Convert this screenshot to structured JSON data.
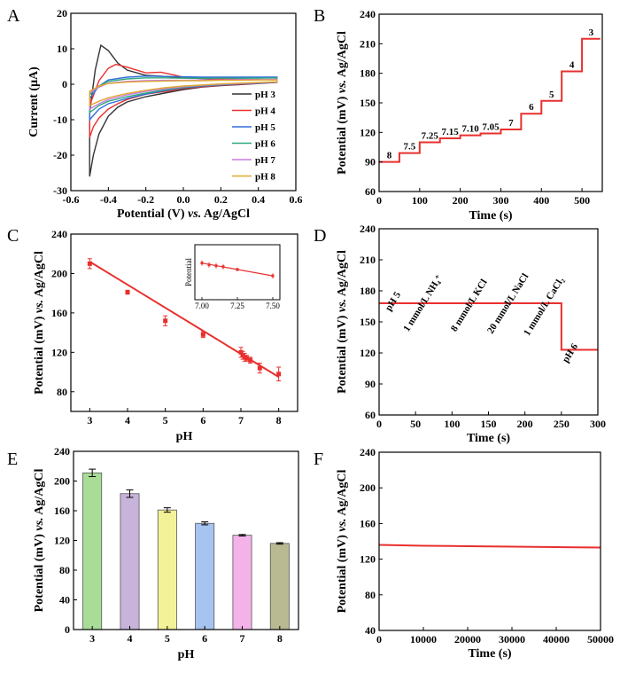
{
  "chart_data": [
    {
      "panel": "A",
      "type": "line",
      "title": "",
      "xlabel": "Potential (V) vs. Ag/AgCl",
      "xlabel_parts": [
        "Potential (V) ",
        "vs.",
        " Ag/AgCl"
      ],
      "ylabel": "Current (μA)",
      "xlim": [
        -0.6,
        0.6
      ],
      "ylim": [
        -30,
        20
      ],
      "xticks": [
        "-0.6",
        "-0.4",
        "-0.2",
        "0.0",
        "0.2",
        "0.4",
        "0.6"
      ],
      "yticks": [
        "-30",
        "-20",
        "-10",
        "0",
        "10",
        "20"
      ],
      "legend_position": "right",
      "series": [
        {
          "name": "pH 3",
          "color": "#333333",
          "upper": [
            [
              -0.5,
              -8
            ],
            [
              -0.47,
              4
            ],
            [
              -0.44,
              11
            ],
            [
              -0.4,
              9.5
            ],
            [
              -0.35,
              6
            ],
            [
              -0.3,
              4
            ],
            [
              -0.2,
              2.5
            ],
            [
              -0.1,
              2.2
            ],
            [
              0.0,
              1.8
            ],
            [
              0.1,
              1.6
            ],
            [
              0.2,
              1.5
            ],
            [
              0.3,
              1.4
            ],
            [
              0.4,
              1.3
            ],
            [
              0.5,
              1.3
            ]
          ],
          "lower": [
            [
              -0.5,
              -26
            ],
            [
              -0.48,
              -20
            ],
            [
              -0.45,
              -14
            ],
            [
              -0.4,
              -9
            ],
            [
              -0.35,
              -6.5
            ],
            [
              -0.3,
              -5
            ],
            [
              -0.2,
              -3.5
            ],
            [
              -0.1,
              -2.5
            ],
            [
              0.0,
              -1.5
            ],
            [
              0.1,
              -0.8
            ],
            [
              0.2,
              -0.4
            ],
            [
              0.3,
              -0.1
            ],
            [
              0.4,
              0.2
            ],
            [
              0.5,
              0.5
            ]
          ]
        },
        {
          "name": "pH 4",
          "color": "#e8302e",
          "upper": [
            [
              -0.5,
              -6
            ],
            [
              -0.45,
              1
            ],
            [
              -0.4,
              4.5
            ],
            [
              -0.36,
              5.6
            ],
            [
              -0.3,
              4.8
            ],
            [
              -0.2,
              3.2
            ],
            [
              -0.12,
              3.4
            ],
            [
              -0.05,
              2.6
            ],
            [
              0.0,
              2
            ],
            [
              0.1,
              1.7
            ],
            [
              0.2,
              1.5
            ],
            [
              0.3,
              1.4
            ],
            [
              0.4,
              1.3
            ],
            [
              0.5,
              1.3
            ]
          ],
          "lower": [
            [
              -0.5,
              -15
            ],
            [
              -0.48,
              -12
            ],
            [
              -0.45,
              -9.5
            ],
            [
              -0.4,
              -7
            ],
            [
              -0.35,
              -5.5
            ],
            [
              -0.3,
              -4.3
            ],
            [
              -0.2,
              -2.8
            ],
            [
              -0.12,
              -2.2
            ],
            [
              -0.05,
              -1.7
            ],
            [
              0.0,
              -1.2
            ],
            [
              0.1,
              -0.7
            ],
            [
              0.2,
              -0.3
            ],
            [
              0.3,
              0
            ],
            [
              0.4,
              0.3
            ],
            [
              0.5,
              0.6
            ]
          ]
        },
        {
          "name": "pH 5",
          "color": "#2f6fdc",
          "upper": [
            [
              -0.5,
              -4
            ],
            [
              -0.45,
              -0.5
            ],
            [
              -0.4,
              1.2
            ],
            [
              -0.3,
              2
            ],
            [
              -0.2,
              2.3
            ],
            [
              -0.1,
              2.2
            ],
            [
              0.0,
              2.1
            ],
            [
              0.1,
              2
            ],
            [
              0.2,
              2
            ],
            [
              0.3,
              2
            ],
            [
              0.4,
              2
            ],
            [
              0.5,
              2
            ]
          ],
          "lower": [
            [
              -0.5,
              -10
            ],
            [
              -0.45,
              -7
            ],
            [
              -0.4,
              -5.5
            ],
            [
              -0.3,
              -4
            ],
            [
              -0.2,
              -2.8
            ],
            [
              -0.1,
              -1.8
            ],
            [
              0.0,
              -1
            ],
            [
              0.1,
              -0.5
            ],
            [
              0.2,
              -0.2
            ],
            [
              0.3,
              0.1
            ],
            [
              0.4,
              0.3
            ],
            [
              0.5,
              0.6
            ]
          ]
        },
        {
          "name": "pH 6",
          "color": "#2ea87c",
          "upper": [
            [
              -0.5,
              -3
            ],
            [
              -0.45,
              -0.5
            ],
            [
              -0.4,
              0.8
            ],
            [
              -0.3,
              1.5
            ],
            [
              -0.2,
              1.8
            ],
            [
              -0.1,
              1.8
            ],
            [
              0.0,
              1.7
            ],
            [
              0.1,
              1.7
            ],
            [
              0.2,
              1.7
            ],
            [
              0.3,
              1.7
            ],
            [
              0.4,
              1.7
            ],
            [
              0.5,
              1.8
            ]
          ],
          "lower": [
            [
              -0.5,
              -8
            ],
            [
              -0.45,
              -6
            ],
            [
              -0.4,
              -4.8
            ],
            [
              -0.3,
              -3.5
            ],
            [
              -0.2,
              -2.5
            ],
            [
              -0.1,
              -1.6
            ],
            [
              0.0,
              -0.9
            ],
            [
              0.1,
              -0.4
            ],
            [
              0.2,
              -0.1
            ],
            [
              0.3,
              0.2
            ],
            [
              0.4,
              0.4
            ],
            [
              0.5,
              0.6
            ]
          ]
        },
        {
          "name": "pH 7",
          "color": "#c77be0",
          "upper": [
            [
              -0.5,
              -2.5
            ],
            [
              -0.45,
              -0.8
            ],
            [
              -0.4,
              0.3
            ],
            [
              -0.3,
              0.8
            ],
            [
              -0.2,
              1
            ],
            [
              -0.1,
              1.1
            ],
            [
              0.0,
              1.1
            ],
            [
              0.1,
              1.2
            ],
            [
              0.2,
              1.2
            ],
            [
              0.3,
              1.3
            ],
            [
              0.4,
              1.3
            ],
            [
              0.5,
              1.4
            ]
          ],
          "lower": [
            [
              -0.5,
              -7
            ],
            [
              -0.45,
              -5.5
            ],
            [
              -0.4,
              -4.3
            ],
            [
              -0.3,
              -3
            ],
            [
              -0.2,
              -2
            ],
            [
              -0.1,
              -1.3
            ],
            [
              0.0,
              -0.7
            ],
            [
              0.1,
              -0.3
            ],
            [
              0.2,
              0
            ],
            [
              0.3,
              0.2
            ],
            [
              0.4,
              0.4
            ],
            [
              0.5,
              0.6
            ]
          ]
        },
        {
          "name": "pH 8",
          "color": "#e0a832",
          "upper": [
            [
              -0.5,
              -2
            ],
            [
              -0.45,
              -0.5
            ],
            [
              -0.4,
              0.2
            ],
            [
              -0.3,
              0.6
            ],
            [
              -0.2,
              0.8
            ],
            [
              -0.1,
              0.9
            ],
            [
              0.0,
              1
            ],
            [
              0.1,
              1
            ],
            [
              0.2,
              1.1
            ],
            [
              0.3,
              1.1
            ],
            [
              0.4,
              1.2
            ],
            [
              0.5,
              1.2
            ]
          ],
          "lower": [
            [
              -0.5,
              -6
            ],
            [
              -0.45,
              -4.8
            ],
            [
              -0.4,
              -3.8
            ],
            [
              -0.3,
              -2.6
            ],
            [
              -0.2,
              -1.7
            ],
            [
              -0.1,
              -1
            ],
            [
              0.0,
              -0.5
            ],
            [
              0.1,
              -0.2
            ],
            [
              0.2,
              0.1
            ],
            [
              0.3,
              0.3
            ],
            [
              0.4,
              0.5
            ],
            [
              0.5,
              0.7
            ]
          ]
        }
      ]
    },
    {
      "panel": "B",
      "type": "line",
      "title": "",
      "xlabel": "Time (s)",
      "ylabel": "Potential (mV) vs. Ag/AgCl",
      "ylabel_parts": [
        "Potential (mV) ",
        "vs.",
        " Ag/AgCl"
      ],
      "xlim": [
        0,
        550
      ],
      "ylim": [
        60,
        240
      ],
      "xticks": [
        "0",
        "100",
        "200",
        "300",
        "400",
        "500"
      ],
      "yticks": [
        "60",
        "90",
        "120",
        "150",
        "180",
        "210",
        "240"
      ],
      "color": "#e8302e",
      "steps": [
        {
          "t0": 0,
          "t1": 50,
          "v": 90,
          "label": "8"
        },
        {
          "t0": 50,
          "t1": 100,
          "v": 99,
          "label": "7.5"
        },
        {
          "t0": 100,
          "t1": 150,
          "v": 110,
          "label": "7.25"
        },
        {
          "t0": 150,
          "t1": 200,
          "v": 114,
          "label": "7.15"
        },
        {
          "t0": 200,
          "t1": 250,
          "v": 117,
          "label": "7.10"
        },
        {
          "t0": 250,
          "t1": 300,
          "v": 119,
          "label": "7.05"
        },
        {
          "t0": 300,
          "t1": 350,
          "v": 123,
          "label": "7"
        },
        {
          "t0": 350,
          "t1": 400,
          "v": 139,
          "label": "6"
        },
        {
          "t0": 400,
          "t1": 450,
          "v": 152,
          "label": "5"
        },
        {
          "t0": 450,
          "t1": 500,
          "v": 182,
          "label": "4"
        },
        {
          "t0": 500,
          "t1": 545,
          "v": 215,
          "label": "3"
        }
      ]
    },
    {
      "panel": "C",
      "type": "scatter",
      "title": "",
      "xlabel": "pH",
      "ylabel": "Potential (mV) vs. Ag/AgCl",
      "ylabel_parts": [
        "Potential (mV) ",
        "vs.",
        " Ag/AgCl"
      ],
      "xlim": [
        2.5,
        8.5
      ],
      "ylim": [
        60,
        240
      ],
      "xticks": [
        "3",
        "4",
        "5",
        "6",
        "7",
        "8"
      ],
      "yticks": [
        "80",
        "120",
        "160",
        "200",
        "240"
      ],
      "color": "#e8302e",
      "points": [
        {
          "x": 3,
          "y": 210,
          "err": 5
        },
        {
          "x": 4,
          "y": 181,
          "err": 2
        },
        {
          "x": 5,
          "y": 152,
          "err": 5
        },
        {
          "x": 6,
          "y": 138,
          "err": 3
        },
        {
          "x": 7,
          "y": 120,
          "err": 5
        },
        {
          "x": 7.05,
          "y": 117,
          "err": 4
        },
        {
          "x": 7.1,
          "y": 115,
          "err": 4
        },
        {
          "x": 7.15,
          "y": 114,
          "err": 3
        },
        {
          "x": 7.25,
          "y": 112,
          "err": 3
        },
        {
          "x": 7.5,
          "y": 104,
          "err": 5
        },
        {
          "x": 8,
          "y": 98,
          "err": 7
        }
      ],
      "fit": {
        "x0": 3,
        "y0": 212,
        "x1": 8,
        "y1": 95
      },
      "inset": {
        "ylabel": "Potential",
        "xlim": [
          6.95,
          7.55
        ],
        "ylim": [
          100,
          130
        ],
        "xticks": [
          "7.00",
          "7.25",
          "7.50"
        ],
        "points": [
          {
            "x": 7,
            "y": 120,
            "err": 1.5
          },
          {
            "x": 7.05,
            "y": 119,
            "err": 1.5
          },
          {
            "x": 7.1,
            "y": 118.5,
            "err": 1.5
          },
          {
            "x": 7.15,
            "y": 118,
            "err": 1.5
          },
          {
            "x": 7.25,
            "y": 116.5,
            "err": 1
          },
          {
            "x": 7.5,
            "y": 113,
            "err": 1.5
          }
        ]
      }
    },
    {
      "panel": "D",
      "type": "line",
      "title": "",
      "xlabel": "Time (s)",
      "ylabel": "Potential (mV) vs. Ag/AgCl",
      "ylabel_parts": [
        "Potential (mV) ",
        "vs.",
        " Ag/AgCl"
      ],
      "xlim": [
        0,
        300
      ],
      "ylim": [
        60,
        240
      ],
      "xticks": [
        "0",
        "50",
        "100",
        "150",
        "200",
        "250",
        "300"
      ],
      "yticks": [
        "60",
        "90",
        "120",
        "150",
        "180",
        "210",
        "240"
      ],
      "color": "#e8302e",
      "segments": [
        {
          "t0": 0,
          "t1": 250,
          "v": 168
        },
        {
          "t0": 250,
          "t1": 300,
          "v": 123
        }
      ],
      "annotations": [
        {
          "x": 15,
          "y": 160,
          "text": "pH 5"
        },
        {
          "x": 40,
          "y": 140,
          "text": "1 mmol/L NH₄⁺"
        },
        {
          "x": 105,
          "y": 140,
          "text": "8 mmol/L KCl"
        },
        {
          "x": 155,
          "y": 138,
          "text": "20 mmol/L NaCl"
        },
        {
          "x": 205,
          "y": 136,
          "text": "1 mmol/L CaCl₂"
        },
        {
          "x": 258,
          "y": 110,
          "text": "pH 6"
        }
      ]
    },
    {
      "panel": "E",
      "type": "bar",
      "title": "",
      "xlabel": "pH",
      "ylabel": "Potential (mV) vs. Ag/AgCl",
      "ylabel_parts": [
        "Potential (mV) ",
        "vs.",
        " Ag/AgCl"
      ],
      "categories": [
        "3",
        "4",
        "5",
        "6",
        "7",
        "8"
      ],
      "values": [
        211,
        183,
        161,
        143,
        127,
        116
      ],
      "errors": [
        5,
        5,
        3,
        2,
        1,
        1
      ],
      "colors": [
        "#a9dc97",
        "#c8b3db",
        "#f4f298",
        "#a7c3f0",
        "#f3b3e8",
        "#b9b992"
      ],
      "ylim": [
        0,
        240
      ],
      "yticks": [
        "0",
        "40",
        "80",
        "120",
        "160",
        "200",
        "240"
      ]
    },
    {
      "panel": "F",
      "type": "line",
      "title": "",
      "xlabel": "Time (s)",
      "ylabel": "Potential (mV) vs. Ag/AgCl",
      "ylabel_parts": [
        "Potential (mV) ",
        "vs.",
        " Ag/AgCl"
      ],
      "xlim": [
        0,
        50000
      ],
      "ylim": [
        40,
        240
      ],
      "xticks": [
        "0",
        "10000",
        "20000",
        "30000",
        "40000",
        "50000"
      ],
      "yticks": [
        "40",
        "80",
        "120",
        "160",
        "200",
        "240"
      ],
      "color": "#e8302e",
      "x": [
        0,
        10000,
        20000,
        30000,
        40000,
        50000
      ],
      "y": [
        136,
        135,
        134.5,
        134,
        133.5,
        133
      ]
    }
  ]
}
